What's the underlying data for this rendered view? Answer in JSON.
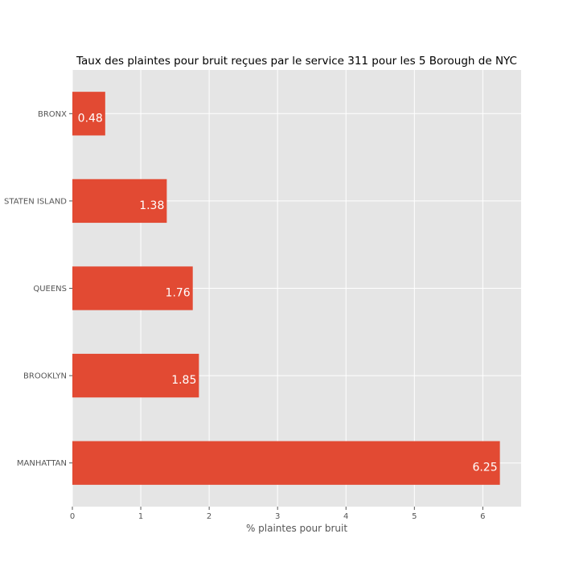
{
  "chart_data": {
    "type": "bar",
    "orientation": "horizontal",
    "title": "Taux des plaintes pour bruit reçues par le service 311 pour les 5 Borough de NYC",
    "xlabel": "% plaintes pour bruit",
    "ylabel": "",
    "categories": [
      "BRONX",
      "STATEN ISLAND",
      "QUEENS",
      "BROOKLYN",
      "MANHATTAN"
    ],
    "values": [
      0.48,
      1.38,
      1.76,
      1.85,
      6.25
    ],
    "data_labels": [
      "0.48",
      "1.38",
      "1.76",
      "1.85",
      "6.25"
    ],
    "xticks": [
      0,
      1,
      2,
      3,
      4,
      5,
      6
    ],
    "xlim": [
      0,
      6.56
    ],
    "grid": true,
    "legend": "none",
    "colors": {
      "bar": "#E24A33",
      "plot_background": "#E5E5E5",
      "grid": "#FFFFFF"
    }
  }
}
